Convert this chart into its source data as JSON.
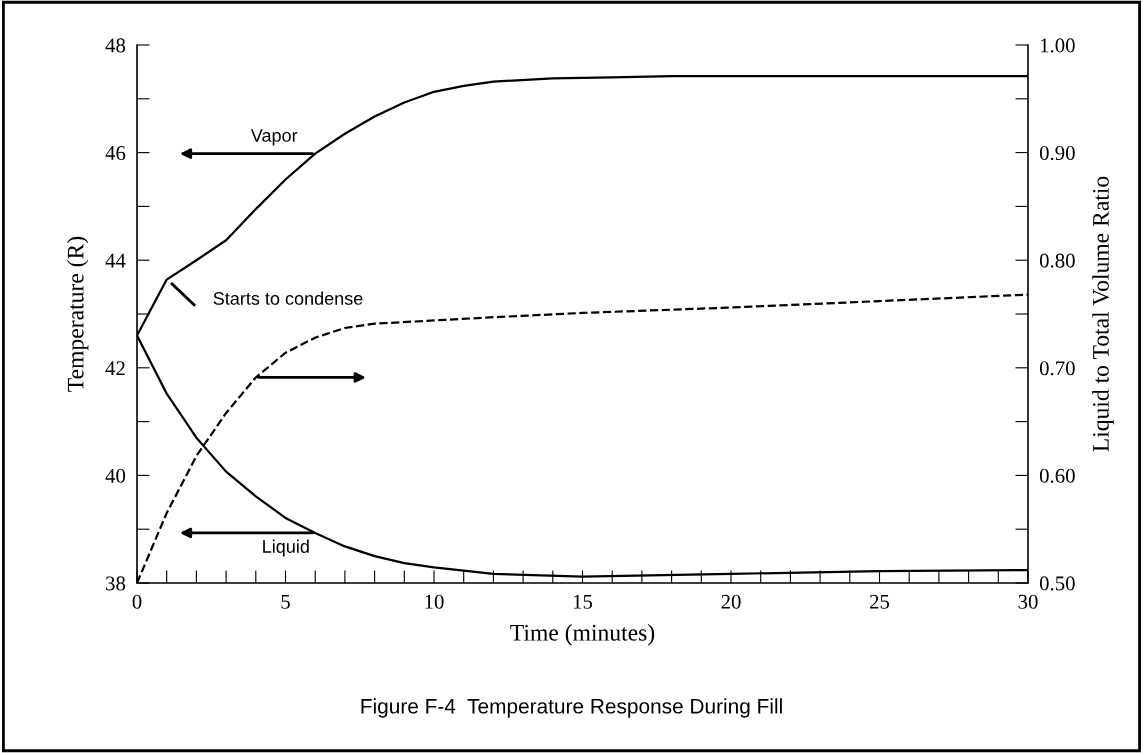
{
  "chart_data": {
    "type": "line",
    "title": "Figure F-4  Temperature Response During Fill",
    "xlabel": "Time (minutes)",
    "ylabel": "Temperature (R)",
    "y2label": "Liquid to Total Volume Ratio",
    "xlim": [
      0,
      30
    ],
    "ylim": [
      38,
      48
    ],
    "y2lim": [
      0.5,
      1.0
    ],
    "xticks": [
      0,
      {
        "value": 1,
        "label": null
      },
      {
        "value": 2,
        "label": null
      },
      {
        "value": 3,
        "label": null
      },
      {
        "value": 4,
        "label": null
      },
      5,
      {
        "value": 6,
        "label": null
      },
      {
        "value": 7,
        "label": null
      },
      {
        "value": 8,
        "label": null
      },
      {
        "value": 9,
        "label": null
      },
      10,
      {
        "value": 11,
        "label": null
      },
      {
        "value": 12,
        "label": null
      },
      {
        "value": 13,
        "label": null
      },
      {
        "value": 14,
        "label": null
      },
      15,
      {
        "value": 16,
        "label": null
      },
      {
        "value": 17,
        "label": null
      },
      {
        "value": 18,
        "label": null
      },
      {
        "value": 19,
        "label": null
      },
      20,
      {
        "value": 21,
        "label": null
      },
      {
        "value": 22,
        "label": null
      },
      {
        "value": 23,
        "label": null
      },
      {
        "value": 24,
        "label": null
      },
      25,
      {
        "value": 26,
        "label": null
      },
      {
        "value": 27,
        "label": null
      },
      {
        "value": 28,
        "label": null
      },
      {
        "value": 29,
        "label": null
      },
      30
    ],
    "yticks": [
      38,
      {
        "value": 39,
        "label": null
      },
      40,
      {
        "value": 41,
        "label": null
      },
      42,
      {
        "value": 43,
        "label": null
      },
      44,
      {
        "value": 45,
        "label": null
      },
      46,
      {
        "value": 47,
        "label": null
      },
      48
    ],
    "y2ticks": [
      {
        "value": 0.5,
        "label": "0.50"
      },
      {
        "value": 0.55,
        "label": null
      },
      {
        "value": 0.6,
        "label": "0.60"
      },
      {
        "value": 0.65,
        "label": null
      },
      {
        "value": 0.7,
        "label": "0.70"
      },
      {
        "value": 0.75,
        "label": null
      },
      {
        "value": 0.8,
        "label": "0.80"
      },
      {
        "value": 0.85,
        "label": null
      },
      {
        "value": 0.9,
        "label": "0.90"
      },
      {
        "value": 0.95,
        "label": null
      },
      {
        "value": 1.0,
        "label": "1.00"
      }
    ],
    "grid": false,
    "legend": false,
    "series": [
      {
        "color": "#000000",
        "line_style": "solid",
        "x": [
          0,
          1,
          2,
          3,
          4,
          5,
          6,
          7,
          8,
          9,
          10,
          11,
          12,
          14,
          16,
          18,
          30
        ],
        "values": [
          42.6,
          43.64,
          44.0,
          44.37,
          44.95,
          45.5,
          45.98,
          46.35,
          46.67,
          46.93,
          47.13,
          47.24,
          47.32,
          47.38,
          47.4,
          47.42,
          47.42
        ]
      },
      {
        "color": "#000000",
        "line_style": "solid",
        "x": [
          0,
          1,
          2,
          3,
          4,
          5,
          6,
          7,
          8,
          9,
          10,
          12,
          15,
          20,
          25,
          30
        ],
        "values": [
          42.6,
          41.52,
          40.7,
          40.07,
          39.61,
          39.21,
          38.93,
          38.68,
          38.5,
          38.37,
          38.29,
          38.17,
          38.12,
          38.17,
          38.22,
          38.24
        ]
      },
      {
        "color": "#000000",
        "line_style": "dashed",
        "axis": "y2",
        "x": [
          0,
          1,
          2,
          3,
          4,
          5,
          6,
          7,
          8,
          10,
          12,
          15,
          20,
          25,
          30
        ],
        "values": [
          0.5,
          0.565,
          0.618,
          0.658,
          0.691,
          0.714,
          0.728,
          0.737,
          0.741,
          0.744,
          0.747,
          0.751,
          0.756,
          0.762,
          0.768
        ]
      }
    ],
    "annotations": [
      "Vapor",
      "Liquid",
      "Starts to condense"
    ]
  }
}
